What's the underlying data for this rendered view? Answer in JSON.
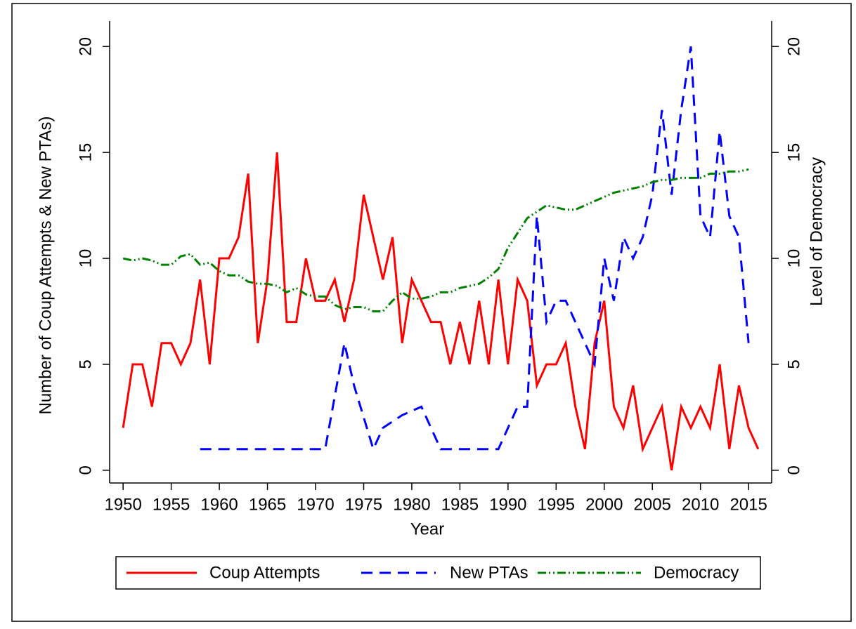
{
  "chart_data": {
    "type": "line",
    "xlabel": "Year",
    "ylabel": "Number of Coup Attempts & New PTAs)",
    "y2label": "Level of Democracy",
    "x": [
      1950,
      1951,
      1952,
      1953,
      1954,
      1955,
      1956,
      1957,
      1958,
      1959,
      1960,
      1961,
      1962,
      1963,
      1964,
      1965,
      1966,
      1967,
      1968,
      1969,
      1970,
      1971,
      1972,
      1973,
      1974,
      1975,
      1976,
      1977,
      1978,
      1979,
      1980,
      1981,
      1982,
      1983,
      1984,
      1985,
      1986,
      1987,
      1988,
      1989,
      1990,
      1991,
      1992,
      1993,
      1994,
      1995,
      1996,
      1997,
      1998,
      1999,
      2000,
      2001,
      2002,
      2003,
      2004,
      2005,
      2006,
      2007,
      2008,
      2009,
      2010,
      2011,
      2012,
      2013,
      2014,
      2015,
      2016
    ],
    "series": [
      {
        "name": "Coup Attempts",
        "color": "#ff0000",
        "dash": "solid",
        "values": [
          2,
          5,
          5,
          3,
          6,
          6,
          5,
          6,
          9,
          5,
          10,
          10,
          11,
          14,
          6,
          9,
          15,
          7,
          7,
          10,
          8,
          8,
          9,
          7,
          9,
          13,
          11,
          9,
          11,
          6,
          9,
          8,
          7,
          7,
          5,
          7,
          5,
          8,
          5,
          9,
          5,
          9,
          8,
          4,
          5,
          5,
          6,
          3,
          1,
          6,
          8,
          3,
          2,
          4,
          1,
          2,
          3,
          0,
          3,
          2,
          3,
          2,
          5,
          1,
          4,
          2,
          1
        ]
      },
      {
        "name": "New PTAs",
        "color": "#0000ff",
        "dash": "dash",
        "values": [
          null,
          null,
          null,
          null,
          null,
          null,
          null,
          null,
          1,
          1,
          1,
          1,
          1,
          1,
          1,
          1,
          1,
          1,
          1,
          1,
          1,
          1,
          3.5,
          6,
          4,
          2.5,
          1,
          2,
          2.3,
          2.6,
          2.8,
          3,
          2,
          1,
          1,
          1,
          1,
          1,
          1,
          1,
          2,
          3,
          3,
          12,
          7,
          8,
          8,
          7,
          6,
          5,
          10,
          8,
          11,
          10,
          11,
          13,
          17,
          13,
          17,
          20,
          12,
          11,
          16,
          12,
          11,
          6,
          null
        ]
      },
      {
        "name": "Democracy",
        "color": "#008000",
        "dash": "dashdot",
        "axis": "y2",
        "values": [
          10,
          9.9,
          10,
          9.9,
          9.7,
          9.7,
          10.1,
          10.2,
          9.7,
          9.8,
          9.4,
          9.2,
          9.2,
          8.9,
          8.8,
          8.8,
          8.7,
          8.4,
          8.6,
          8.3,
          8.2,
          8.2,
          7.8,
          7.6,
          7.7,
          7.7,
          7.5,
          7.5,
          8.0,
          8.4,
          8.1,
          8.1,
          8.2,
          8.4,
          8.4,
          8.6,
          8.7,
          8.8,
          9.1,
          9.5,
          10.5,
          11.2,
          11.9,
          12.2,
          12.5,
          12.4,
          12.3,
          12.3,
          12.5,
          12.7,
          12.9,
          13.1,
          13.2,
          13.3,
          13.4,
          13.6,
          13.7,
          13.7,
          13.8,
          13.8,
          13.8,
          14.0,
          14.0,
          14.1,
          14.1,
          14.2,
          null
        ]
      }
    ],
    "xlim": [
      1948.6,
      2017.4
    ],
    "xticks": [
      1950,
      1955,
      1960,
      1965,
      1970,
      1975,
      1980,
      1985,
      1990,
      1995,
      2000,
      2005,
      2010,
      2015
    ],
    "ylim": [
      -0.6,
      21.2
    ],
    "yticks": [
      0,
      5,
      10,
      15,
      20
    ],
    "y2lim": [
      -0.6,
      21.2
    ],
    "y2ticks": [
      0,
      5,
      10,
      15,
      20
    ],
    "grid": false,
    "legend_position": "bottom"
  }
}
